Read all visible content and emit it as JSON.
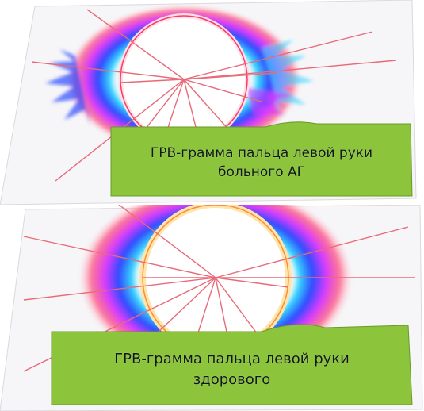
{
  "figure_top": {
    "caption_line1": "ГРВ-грамма пальца левой руки",
    "caption_line2": "больного АГ"
  },
  "figure_bottom": {
    "caption_line1": "ГРВ-грамма пальца левой руки",
    "caption_line2": "здорового"
  },
  "colors": {
    "caption_fill": "#8cc43c",
    "caption_stroke": "#6a9a2a",
    "glow_red": "#ff3a6a",
    "glow_magenta": "#d83cff",
    "glow_blue": "#2d4bff",
    "glow_cyan": "#39d9ff",
    "ring": "#ffffff",
    "lines": "#e86a78"
  }
}
